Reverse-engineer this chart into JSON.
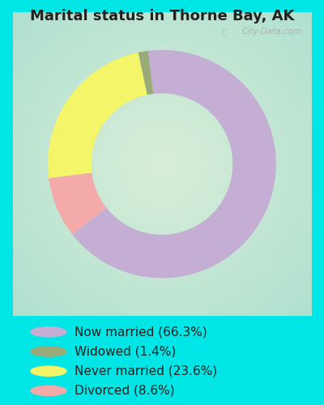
{
  "title": "Marital status in Thorne Bay, AK",
  "categories": [
    "Now married",
    "Widowed",
    "Never married",
    "Divorced"
  ],
  "percentages": [
    66.3,
    1.4,
    23.6,
    8.6
  ],
  "colors": [
    "#c4aed4",
    "#9aab7a",
    "#f5f56a",
    "#f5aaaa"
  ],
  "legend_labels": [
    "Now married (66.3%)",
    "Widowed (1.4%)",
    "Never married (23.6%)",
    "Divorced (8.6%)"
  ],
  "bg_cyan": "#00e5e5",
  "chart_bg_center": "#d8eed8",
  "chart_bg_edge": "#b8e8d8",
  "watermark": "City-Data.com",
  "title_fontsize": 13,
  "legend_fontsize": 11,
  "donut_width": 0.38,
  "startangle": 97
}
